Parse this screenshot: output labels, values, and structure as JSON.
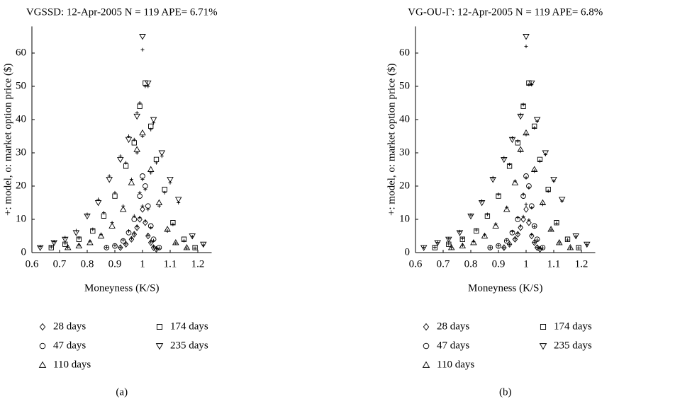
{
  "chart_data": [
    {
      "type": "scatter",
      "title": "VGSSD: 12-Apr-2005 N = 119 APE= 6.71%",
      "xlabel": "Moneyness (K/S)",
      "ylabel": "+: model, o: market option price ($)",
      "caption": "(a)",
      "xlim": [
        0.6,
        1.25
      ],
      "ylim": [
        0,
        68
      ],
      "xticks": [
        0.6,
        0.7,
        0.8,
        0.9,
        1,
        1.1,
        1.2
      ],
      "yticks": [
        0,
        10,
        20,
        30,
        40,
        50,
        60
      ],
      "series": [
        {
          "name": "28 days",
          "marker": "diamond",
          "color": "#000000",
          "x": [
            0.92,
            0.94,
            0.96,
            0.97,
            0.98,
            0.99,
            1.0,
            1.01,
            1.02,
            1.03,
            1.04,
            1.05
          ],
          "values": [
            1.5,
            2.5,
            4,
            5.5,
            7.5,
            10,
            13,
            9,
            5,
            3,
            1.5,
            1
          ],
          "model": [
            1.6,
            2.6,
            4.2,
            5.6,
            7.8,
            10.5,
            14,
            9.5,
            5.2,
            3.2,
            1.7,
            1.1
          ]
        },
        {
          "name": "47 days",
          "marker": "circle",
          "color": "#000000",
          "x": [
            0.87,
            0.9,
            0.93,
            0.95,
            0.97,
            0.99,
            1.0,
            1.01,
            1.02,
            1.03,
            1.04,
            1.06
          ],
          "values": [
            1.5,
            2,
            3.5,
            6,
            10,
            17,
            23,
            20,
            14,
            8,
            4,
            1.5
          ],
          "model": [
            1.6,
            2.2,
            3.8,
            6.5,
            11,
            18,
            22,
            19,
            13,
            7.5,
            3.6,
            1.3
          ]
        },
        {
          "name": "110 days",
          "marker": "triangle",
          "color": "#000000",
          "x": [
            0.73,
            0.77,
            0.81,
            0.85,
            0.89,
            0.93,
            0.96,
            0.98,
            1.0,
            1.03,
            1.06,
            1.09,
            1.12,
            1.16
          ],
          "values": [
            1.5,
            2,
            3,
            5,
            8,
            13,
            21,
            31,
            36,
            25,
            15,
            7,
            3,
            1.5
          ],
          "model": [
            1.6,
            2.3,
            3.4,
            5.5,
            9,
            14,
            22,
            30,
            35,
            24,
            14,
            6.5,
            2.8,
            1.3
          ]
        },
        {
          "name": "174 days",
          "marker": "square",
          "color": "#000000",
          "x": [
            0.67,
            0.72,
            0.77,
            0.82,
            0.86,
            0.9,
            0.94,
            0.97,
            0.99,
            1.01,
            1.03,
            1.05,
            1.08,
            1.11,
            1.15,
            1.19
          ],
          "values": [
            1.5,
            2.5,
            4,
            6.5,
            11,
            17,
            26,
            33,
            44,
            51,
            38,
            28,
            19,
            9,
            4,
            1.5
          ],
          "model": [
            1.7,
            2.8,
            4.4,
            7,
            12,
            18,
            27,
            34,
            45,
            50,
            37,
            27,
            18,
            8.5,
            3.6,
            1.3
          ]
        },
        {
          "name": "235 days",
          "marker": "triangle-down",
          "color": "#000000",
          "x": [
            0.63,
            0.68,
            0.72,
            0.76,
            0.8,
            0.84,
            0.88,
            0.92,
            0.95,
            0.98,
            1.0,
            1.02,
            1.04,
            1.07,
            1.1,
            1.13,
            1.18,
            1.22
          ],
          "values": [
            1.5,
            3,
            4,
            6,
            11,
            15,
            22,
            28,
            34,
            41,
            65,
            51,
            40,
            30,
            22,
            16,
            5,
            2.5
          ],
          "model": [
            1.8,
            3.3,
            4.5,
            6.6,
            11.5,
            16,
            23,
            29,
            35,
            42,
            61,
            50,
            39,
            29,
            21,
            15,
            4.8,
            2.3
          ]
        }
      ]
    },
    {
      "type": "scatter",
      "title": "VG-OU-Γ: 12-Apr-2005 N = 119 APE= 6.8%",
      "xlabel": "Moneyness (K/S)",
      "ylabel": "+: model, o: market option price ($)",
      "caption": "(b)",
      "xlim": [
        0.6,
        1.25
      ],
      "ylim": [
        0,
        68
      ],
      "xticks": [
        0.6,
        0.7,
        0.8,
        0.9,
        1,
        1.1,
        1.2
      ],
      "yticks": [
        0,
        10,
        20,
        30,
        40,
        50,
        60
      ],
      "series": [
        {
          "name": "28 days",
          "marker": "diamond",
          "color": "#000000",
          "x": [
            0.92,
            0.94,
            0.96,
            0.97,
            0.98,
            0.99,
            1.0,
            1.01,
            1.02,
            1.03,
            1.04,
            1.05
          ],
          "values": [
            1.5,
            2.5,
            4,
            5.5,
            7.5,
            10,
            13,
            9,
            5,
            3,
            1.5,
            1
          ],
          "model": [
            1.5,
            2.5,
            4.1,
            5.7,
            8,
            10.8,
            14.5,
            9.8,
            5.4,
            3.1,
            1.6,
            1.1
          ]
        },
        {
          "name": "47 days",
          "marker": "circle",
          "color": "#000000",
          "x": [
            0.87,
            0.9,
            0.93,
            0.95,
            0.97,
            0.99,
            1.0,
            1.01,
            1.02,
            1.03,
            1.04,
            1.06
          ],
          "values": [
            1.5,
            2,
            3.5,
            6,
            10,
            17,
            23,
            20,
            14,
            8,
            4,
            1.5
          ],
          "model": [
            1.5,
            2.1,
            3.7,
            6.3,
            10.5,
            17.5,
            22.5,
            19.5,
            13.5,
            7.8,
            3.8,
            1.4
          ]
        },
        {
          "name": "110 days",
          "marker": "triangle",
          "color": "#000000",
          "x": [
            0.73,
            0.77,
            0.81,
            0.85,
            0.89,
            0.93,
            0.96,
            0.98,
            1.0,
            1.03,
            1.06,
            1.09,
            1.12,
            1.16
          ],
          "values": [
            1.5,
            2,
            3,
            5,
            8,
            13,
            21,
            31,
            36,
            25,
            15,
            7,
            3,
            1.5
          ],
          "model": [
            1.5,
            2.2,
            3.3,
            5.3,
            8.6,
            13.6,
            21.5,
            30.5,
            35.5,
            24.5,
            14.5,
            6.8,
            2.9,
            1.4
          ]
        },
        {
          "name": "174 days",
          "marker": "square",
          "color": "#000000",
          "x": [
            0.67,
            0.72,
            0.77,
            0.82,
            0.86,
            0.9,
            0.94,
            0.97,
            0.99,
            1.01,
            1.03,
            1.05,
            1.08,
            1.11,
            1.15,
            1.19
          ],
          "values": [
            1.5,
            2.5,
            4,
            6.5,
            11,
            17,
            26,
            33,
            44,
            51,
            38,
            28,
            19,
            9,
            4,
            1.5
          ],
          "model": [
            1.6,
            2.6,
            4.2,
            6.8,
            11.5,
            17.5,
            26.5,
            33.5,
            44.5,
            50.5,
            37.5,
            27.5,
            18.5,
            8.8,
            3.8,
            1.4
          ]
        },
        {
          "name": "235 days",
          "marker": "triangle-down",
          "color": "#000000",
          "x": [
            0.63,
            0.68,
            0.72,
            0.76,
            0.8,
            0.84,
            0.88,
            0.92,
            0.95,
            0.98,
            1.0,
            1.02,
            1.04,
            1.07,
            1.1,
            1.13,
            1.18,
            1.22
          ],
          "values": [
            1.5,
            3,
            4,
            6,
            11,
            15,
            22,
            28,
            34,
            41,
            65,
            51,
            40,
            30,
            22,
            16,
            5,
            2.5
          ],
          "model": [
            1.6,
            3.1,
            4.2,
            6.3,
            11.3,
            15.5,
            22.5,
            28.5,
            34.5,
            41.5,
            62,
            50.5,
            39.5,
            29.5,
            21.5,
            15.5,
            4.9,
            2.4
          ]
        }
      ]
    }
  ]
}
